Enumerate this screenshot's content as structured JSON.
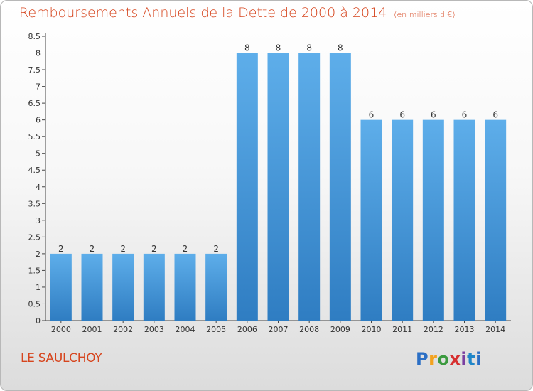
{
  "header": {
    "title": "Remboursements Annuels de la Dette de 2000 à 2014",
    "subtitle": "(en milliers d'€)"
  },
  "footer": {
    "commune": "LE SAULCHOY",
    "logo_text": "Proxiti"
  },
  "colors": {
    "title": "#d6451e",
    "bar_light": "#5eaeea",
    "bar_dark": "#2f7dc2"
  },
  "chart_data": {
    "type": "bar",
    "title": "Remboursements Annuels de la Dette de 2000 à 2014",
    "subtitle": "(en milliers d'€)",
    "categories": [
      "2000",
      "2001",
      "2002",
      "2003",
      "2004",
      "2005",
      "2006",
      "2007",
      "2008",
      "2009",
      "2010",
      "2011",
      "2012",
      "2013",
      "2014"
    ],
    "values": [
      2,
      2,
      2,
      2,
      2,
      2,
      8,
      8,
      8,
      8,
      6,
      6,
      6,
      6,
      6
    ],
    "ylim": [
      0,
      8.5
    ],
    "yticks": [
      "0",
      "0.5",
      "1",
      "1.5",
      "2",
      "2.5",
      "3",
      "3.5",
      "4",
      "4.5",
      "5",
      "5.5",
      "6",
      "6.5",
      "7",
      "7.5",
      "8",
      "8.5"
    ],
    "grid": false,
    "legend": "none",
    "data_labels": true
  }
}
